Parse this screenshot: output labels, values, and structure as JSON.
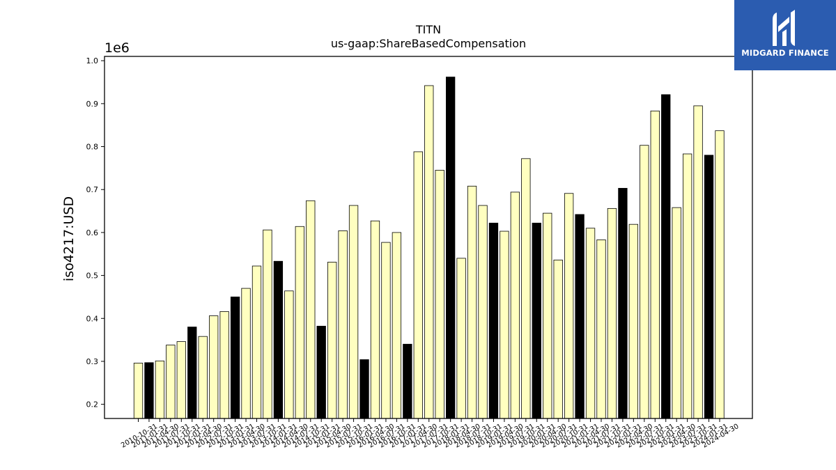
{
  "chart_data": {
    "type": "bar",
    "title": "TITN",
    "subtitle": "us-gaap:ShareBasedCompensation",
    "ylabel": "iso4217:USD",
    "offset_label": "1e6",
    "ylim": [
      0.167,
      1.01
    ],
    "yticks": [
      "0.2",
      "0.3",
      "0.4",
      "0.5",
      "0.6",
      "0.7",
      "0.8",
      "0.9",
      "1.0"
    ],
    "ytick_values": [
      0.2,
      0.3,
      0.4,
      0.5,
      0.6,
      0.7,
      0.8,
      0.9,
      1.0
    ],
    "categories": [
      "2010-10-31",
      "2011-01-31",
      "2011-04-30",
      "2011-07-31",
      "2011-10-31",
      "2012-01-31",
      "2012-04-30",
      "2012-07-31",
      "2012-10-31",
      "2013-01-31",
      "2013-04-30",
      "2013-07-31",
      "2013-10-31",
      "2014-01-31",
      "2014-04-30",
      "2014-07-31",
      "2014-10-31",
      "2015-01-31",
      "2015-04-30",
      "2015-07-31",
      "2015-10-31",
      "2016-01-31",
      "2016-04-30",
      "2016-07-31",
      "2016-10-31",
      "2017-01-31",
      "2017-04-30",
      "2017-07-31",
      "2017-10-31",
      "2018-01-31",
      "2018-04-30",
      "2018-07-31",
      "2018-10-31",
      "2019-01-31",
      "2019-04-30",
      "2019-07-31",
      "2019-10-31",
      "2020-01-31",
      "2020-04-30",
      "2020-07-31",
      "2020-10-31",
      "2021-01-31",
      "2021-04-30",
      "2021-07-31",
      "2021-10-31",
      "2022-01-31",
      "2022-04-30",
      "2022-07-31",
      "2022-10-31",
      "2023-01-31",
      "2023-04-30",
      "2023-07-31",
      "2023-10-31",
      "2024-01-31",
      "2024-04-30"
    ],
    "values": [
      0.296,
      0.297,
      0.301,
      0.338,
      0.346,
      0.38,
      0.358,
      0.406,
      0.416,
      0.45,
      0.47,
      0.522,
      0.606,
      0.533,
      0.464,
      0.614,
      0.674,
      0.382,
      0.531,
      0.604,
      0.663,
      0.304,
      0.627,
      0.577,
      0.6,
      0.34,
      0.788,
      0.942,
      0.745,
      0.962,
      0.54,
      0.708,
      0.663,
      0.622,
      0.603,
      0.694,
      0.772,
      0.622,
      0.645,
      0.536,
      0.691,
      0.642,
      0.61,
      0.583,
      0.656,
      0.703,
      0.619,
      0.803,
      0.883,
      0.921,
      0.658,
      0.783,
      0.895,
      0.78,
      0.837
    ],
    "highlight": [
      false,
      true,
      false,
      false,
      false,
      true,
      false,
      false,
      false,
      true,
      false,
      false,
      false,
      true,
      false,
      false,
      false,
      true,
      false,
      false,
      false,
      true,
      false,
      false,
      false,
      true,
      false,
      false,
      false,
      true,
      false,
      false,
      false,
      true,
      false,
      false,
      false,
      true,
      false,
      false,
      false,
      true,
      false,
      false,
      false,
      true,
      false,
      false,
      false,
      true,
      false,
      false,
      false,
      true,
      false
    ],
    "colors": {
      "bar": "#ffffc0",
      "highlight": "#000000",
      "edge": "#000000"
    },
    "grid": false,
    "legend": "none"
  },
  "logo": {
    "text": "MIDGARD FINANCE",
    "background": "#2b5cb0"
  }
}
